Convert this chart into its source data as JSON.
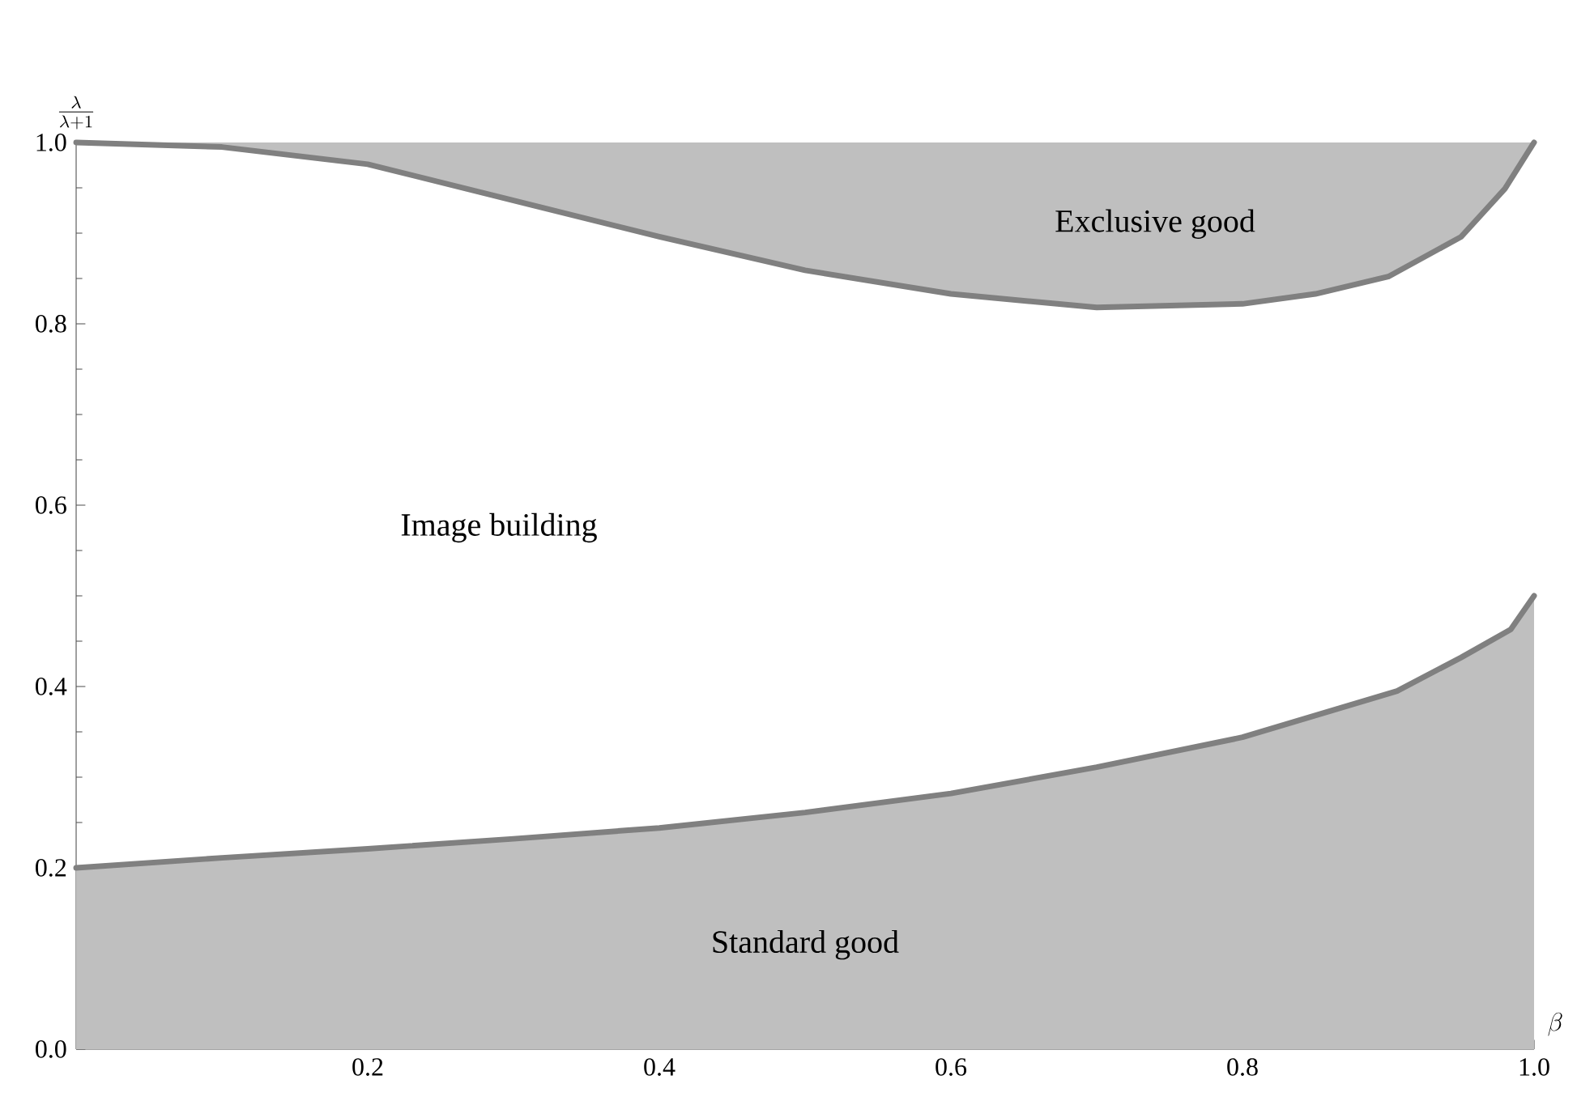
{
  "chart_data": {
    "type": "line",
    "xlabel": "\\beta",
    "ylabel": "\\frac{\\lambda}{\\lambda + 1}",
    "x": [
      0,
      0.1,
      0.2,
      0.3,
      0.4,
      0.5,
      0.6,
      0.7,
      0.8,
      0.85,
      0.9,
      0.95,
      0.98,
      1
    ],
    "series": [
      {
        "color": "#808080",
        "values": [
          1.0,
          0.995,
          0.976,
          0.936,
          0.896,
          0.859,
          0.833,
          0.818,
          0.822,
          0.833,
          0.852,
          0.896,
          0.949,
          1.0
        ],
        "lower": [
          1.0,
          0.995,
          0.976,
          0.936,
          0.896,
          0.859,
          0.833,
          0.818,
          0.822,
          0.833,
          0.852,
          0.896,
          0.949,
          1.0
        ],
        "upper": [
          1,
          1,
          1,
          1,
          1,
          1,
          1,
          1,
          1,
          1,
          1,
          1,
          1,
          1
        ]
      },
      {
        "type": "area",
        "color": "#808080",
        "x": [
          0,
          0.1,
          0.2,
          0.3,
          0.4,
          0.5,
          0.6,
          0.7,
          0.8,
          0.906,
          0.95,
          0.984,
          1
        ],
        "values": [
          0.2,
          0.211,
          0.221,
          0.232,
          0.244,
          0.261,
          0.282,
          0.311,
          0.344,
          0.395,
          0.432,
          0.463,
          0.5
        ]
      }
    ],
    "xlim": [
      0,
      1
    ],
    "ylim": [
      0,
      1
    ],
    "xticks": [
      0.2,
      0.4,
      0.6,
      0.8,
      {
        "value": 1,
        "label": "1.0"
      }
    ],
    "yticks": [
      {
        "value": 0,
        "label": "0.0"
      },
      0.2,
      0.4,
      0.6,
      0.8,
      {
        "value": 1,
        "label": "1.0"
      }
    ],
    "annotations": [
      "Exclusive good",
      "Image building",
      "Standard good"
    ]
  }
}
